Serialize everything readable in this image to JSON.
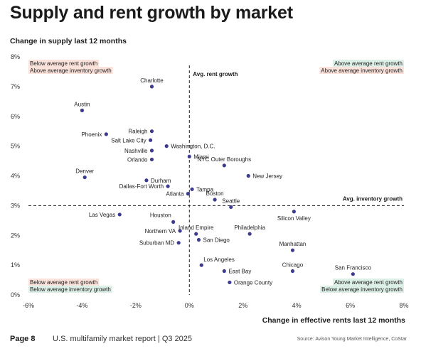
{
  "header": {
    "title": "Supply and rent growth by market"
  },
  "footer": {
    "page": "Page 8",
    "report": "U.S. multifamily market report | Q3 2025",
    "source": "Source: Avison Young Market Intelligence, CoStar"
  },
  "colors": {
    "point": "#3d3b8e",
    "pink_bg": "#fbe3dc",
    "green_bg": "#ddf0e7",
    "ref_line": "#222222"
  },
  "chart_data": {
    "type": "scatter",
    "xlabel": "Change in effective rents last 12 months",
    "ylabel": "Change in supply last 12 months",
    "xlim": [
      -6,
      8
    ],
    "ylim": [
      0,
      8
    ],
    "x_ticks": [
      -6,
      -4,
      -2,
      0,
      2,
      4,
      6,
      8
    ],
    "y_ticks": [
      0,
      1,
      2,
      3,
      4,
      5,
      6,
      7,
      8
    ],
    "x_tick_labels": [
      "-6%",
      "-4%",
      "-2%",
      "0%",
      "2%",
      "4%",
      "6%",
      "8%"
    ],
    "y_tick_labels": [
      "0%",
      "1%",
      "2%",
      "3%",
      "4%",
      "5%",
      "6%",
      "7%",
      "8%"
    ],
    "grid": false,
    "reference_lines": {
      "vertical": {
        "x": 0,
        "label": "Avg. rent growth"
      },
      "horizontal": {
        "y": 3,
        "label": "Avg. inventory growth"
      }
    },
    "quadrant_labels": {
      "top_left": [
        "Below average rent growth",
        "Above average inventory growth"
      ],
      "top_right": [
        "Above average rent growth",
        "Above average inventory growth"
      ],
      "bottom_left": [
        "Below average rent growth",
        "Below average inventory growth"
      ],
      "bottom_right": [
        "Above average rent growth",
        "Below average inventory growth"
      ]
    },
    "points": [
      {
        "label": "Charlotte",
        "x": -1.4,
        "y": 7.0,
        "anchor": "top"
      },
      {
        "label": "Austin",
        "x": -4.0,
        "y": 6.2,
        "anchor": "top"
      },
      {
        "label": "Raleigh",
        "x": -1.4,
        "y": 5.5,
        "anchor": "left"
      },
      {
        "label": "Phoenix",
        "x": -3.1,
        "y": 5.4,
        "anchor": "left"
      },
      {
        "label": "Salt Lake City",
        "x": -1.45,
        "y": 5.2,
        "anchor": "left"
      },
      {
        "label": "Washington, D.C.",
        "x": -0.85,
        "y": 5.0,
        "anchor": "right"
      },
      {
        "label": "Nashville",
        "x": -1.4,
        "y": 4.85,
        "anchor": "left"
      },
      {
        "label": "Miami",
        "x": 0.0,
        "y": 4.65,
        "anchor": "right"
      },
      {
        "label": "Orlando",
        "x": -1.4,
        "y": 4.55,
        "anchor": "left"
      },
      {
        "label": "NYC Outer Boroughs",
        "x": 1.3,
        "y": 4.35,
        "anchor": "top"
      },
      {
        "label": "New Jersey",
        "x": 2.2,
        "y": 4.0,
        "anchor": "right"
      },
      {
        "label": "Denver",
        "x": -3.9,
        "y": 3.95,
        "anchor": "top"
      },
      {
        "label": "Durham",
        "x": -1.6,
        "y": 3.85,
        "anchor": "right"
      },
      {
        "label": "Dallas-Fort Worth",
        "x": -0.8,
        "y": 3.65,
        "anchor": "left"
      },
      {
        "label": "Tampa",
        "x": 0.1,
        "y": 3.55,
        "anchor": "right"
      },
      {
        "label": "Atlanta",
        "x": -0.05,
        "y": 3.4,
        "anchor": "left"
      },
      {
        "label": "Boston",
        "x": 0.95,
        "y": 3.2,
        "anchor": "top"
      },
      {
        "label": "Seattle",
        "x": 1.55,
        "y": 2.95,
        "anchor": "top"
      },
      {
        "label": "Silicon Valley",
        "x": 3.9,
        "y": 2.8,
        "anchor": "bottom"
      },
      {
        "label": "Las Vegas",
        "x": -2.6,
        "y": 2.7,
        "anchor": "left"
      },
      {
        "label": "Houston",
        "x": -0.6,
        "y": 2.45,
        "anchor": "topleft"
      },
      {
        "label": "Northern VA",
        "x": -0.35,
        "y": 2.15,
        "anchor": "left"
      },
      {
        "label": "Inland Empire",
        "x": 0.25,
        "y": 2.05,
        "anchor": "top"
      },
      {
        "label": "Philadelphia",
        "x": 2.25,
        "y": 2.05,
        "anchor": "top"
      },
      {
        "label": "San Diego",
        "x": 0.35,
        "y": 1.85,
        "anchor": "right"
      },
      {
        "label": "Suburban MD",
        "x": -0.4,
        "y": 1.75,
        "anchor": "left"
      },
      {
        "label": "Manhattan",
        "x": 3.85,
        "y": 1.5,
        "anchor": "top"
      },
      {
        "label": "Los Angeles",
        "x": 0.45,
        "y": 1.0,
        "anchor": "topright"
      },
      {
        "label": "East Bay",
        "x": 1.3,
        "y": 0.8,
        "anchor": "right"
      },
      {
        "label": "Chicago",
        "x": 3.85,
        "y": 0.8,
        "anchor": "top"
      },
      {
        "label": "San Francisco",
        "x": 6.1,
        "y": 0.7,
        "anchor": "top"
      },
      {
        "label": "Orange County",
        "x": 1.5,
        "y": 0.42,
        "anchor": "right"
      }
    ]
  }
}
